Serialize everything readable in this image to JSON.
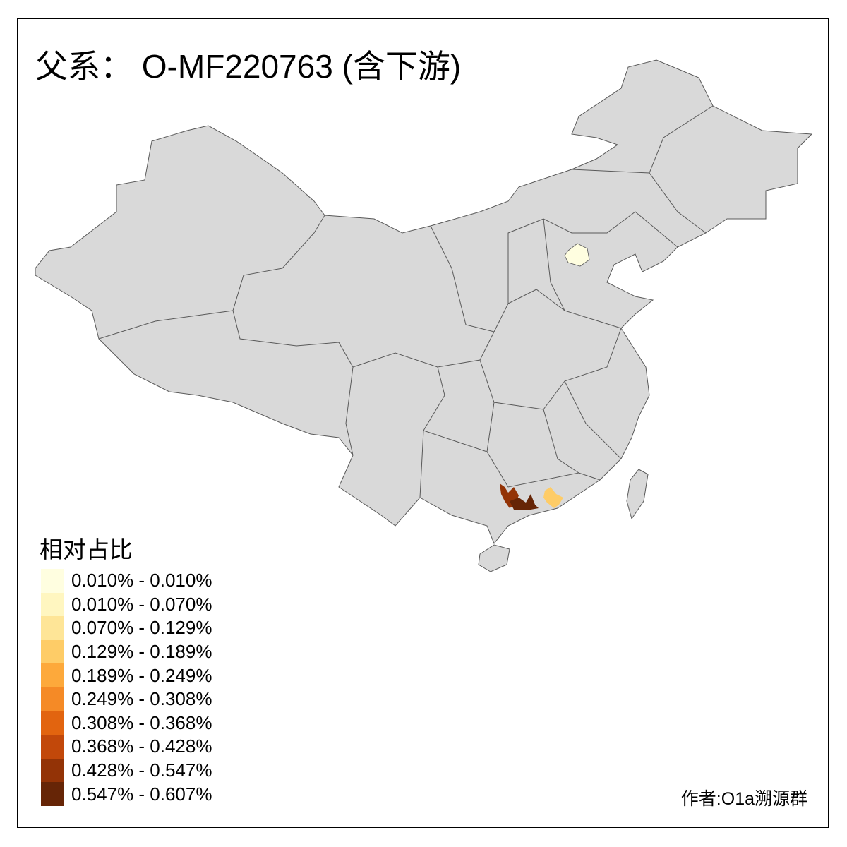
{
  "title": "父系： O-MF220763 (含下游)",
  "legend": {
    "title": "相对占比",
    "items": [
      {
        "label": "0.010% - 0.010%",
        "color": "#FFFEE0"
      },
      {
        "label": "0.010% - 0.070%",
        "color": "#FFF6C0"
      },
      {
        "label": "0.070% - 0.129%",
        "color": "#FEE597"
      },
      {
        "label": "0.129% - 0.189%",
        "color": "#FECC67"
      },
      {
        "label": "0.189% - 0.249%",
        "color": "#FDA93B"
      },
      {
        "label": "0.249% - 0.308%",
        "color": "#F58A26"
      },
      {
        "label": "0.308% - 0.368%",
        "color": "#E2640F"
      },
      {
        "label": "0.368% - 0.428%",
        "color": "#C2480A"
      },
      {
        "label": "0.428% - 0.547%",
        "color": "#933306"
      },
      {
        "label": "0.547% - 0.607%",
        "color": "#662506"
      }
    ]
  },
  "map": {
    "base_color": "#D9D9D9",
    "border_color": "#595959",
    "highlighted_regions": [
      {
        "region": "Beijing",
        "bin": 0
      },
      {
        "region": "Guangxi east",
        "bin": 8
      },
      {
        "region": "Guangxi center",
        "bin": 9
      },
      {
        "region": "Guangdong",
        "bin": 3
      }
    ]
  },
  "credit": "作者:O1a溯源群"
}
